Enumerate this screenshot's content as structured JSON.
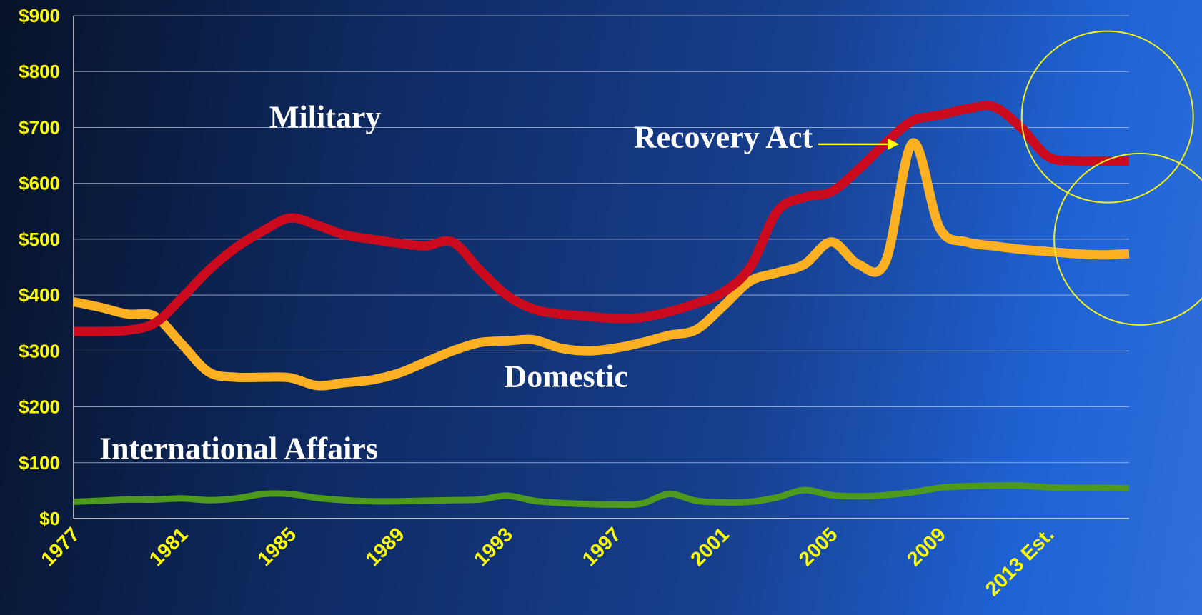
{
  "chart_data": {
    "type": "line",
    "title": "",
    "xlabel": "",
    "ylabel": "",
    "ylim": [
      0,
      900
    ],
    "xlim": [
      1977,
      2016
    ],
    "grid": true,
    "legend": "none",
    "y_ticks": [
      "$0",
      "$100",
      "$200",
      "$300",
      "$400",
      "$500",
      "$600",
      "$700",
      "$800",
      "$900"
    ],
    "x_ticks": [
      {
        "x": 1977,
        "label": "1977"
      },
      {
        "x": 1981,
        "label": "1981"
      },
      {
        "x": 1985,
        "label": "1985"
      },
      {
        "x": 1989,
        "label": "1989"
      },
      {
        "x": 1993,
        "label": "1993"
      },
      {
        "x": 1997,
        "label": "1997"
      },
      {
        "x": 2001,
        "label": "2001"
      },
      {
        "x": 2005,
        "label": "2005"
      },
      {
        "x": 2009,
        "label": "2009"
      },
      {
        "x": 2013,
        "label": "2013 Est."
      }
    ],
    "x": [
      1977,
      1978,
      1979,
      1980,
      1981,
      1982,
      1983,
      1984,
      1985,
      1986,
      1987,
      1988,
      1989,
      1990,
      1991,
      1992,
      1993,
      1994,
      1995,
      1996,
      1997,
      1998,
      1999,
      2000,
      2001,
      2002,
      2003,
      2004,
      2005,
      2006,
      2007,
      2008,
      2009,
      2010,
      2011,
      2012,
      2013,
      2014,
      2015,
      2016
    ],
    "series": [
      {
        "name": "Military",
        "color": "#cc0a1e",
        "values": [
          335,
          335,
          337,
          350,
          395,
          445,
          485,
          515,
          538,
          525,
          508,
          500,
          493,
          488,
          495,
          445,
          400,
          375,
          366,
          362,
          358,
          360,
          370,
          385,
          405,
          450,
          550,
          575,
          585,
          625,
          672,
          712,
          722,
          733,
          737,
          700,
          648,
          640,
          640,
          640
        ]
      },
      {
        "name": "Domestic",
        "color": "#fdb022",
        "values": [
          388,
          378,
          366,
          362,
          312,
          262,
          253,
          253,
          252,
          238,
          243,
          248,
          260,
          280,
          300,
          315,
          318,
          320,
          305,
          300,
          305,
          315,
          328,
          338,
          380,
          425,
          440,
          455,
          495,
          455,
          460,
          672,
          520,
          495,
          488,
          482,
          478,
          474,
          472,
          474
        ]
      },
      {
        "name": "International Affairs",
        "color": "#4d9a1c",
        "values": [
          30,
          32,
          34,
          34,
          36,
          33,
          36,
          44,
          44,
          37,
          33,
          31,
          31,
          32,
          33,
          34,
          41,
          32,
          28,
          26,
          25,
          27,
          44,
          32,
          29,
          30,
          38,
          51,
          42,
          40,
          42,
          47,
          55,
          58,
          59,
          59,
          56,
          55,
          55,
          54
        ]
      }
    ],
    "annotations": [
      {
        "text": "Military",
        "x": 1986.3,
        "y": 700
      },
      {
        "text": "Recovery Act",
        "x": 2001.0,
        "y": 664
      },
      {
        "text": "Domestic",
        "x": 1995.2,
        "y": 236
      },
      {
        "text": "International Affairs",
        "x": 1983.1,
        "y": 107
      }
    ],
    "highlight_circles": [
      {
        "x": 2015.2,
        "y": 719
      },
      {
        "x": 2016.4,
        "y": 500
      }
    ],
    "arrow": {
      "from": [
        2004.5,
        670
      ],
      "to": [
        2007.5,
        670
      ]
    }
  },
  "colors": {
    "axis_text": "#ffff00",
    "grid": "#b8c4dc",
    "annotation_text": "#ffffff",
    "circle": "#f0f020",
    "arrow": "#ffff00"
  }
}
